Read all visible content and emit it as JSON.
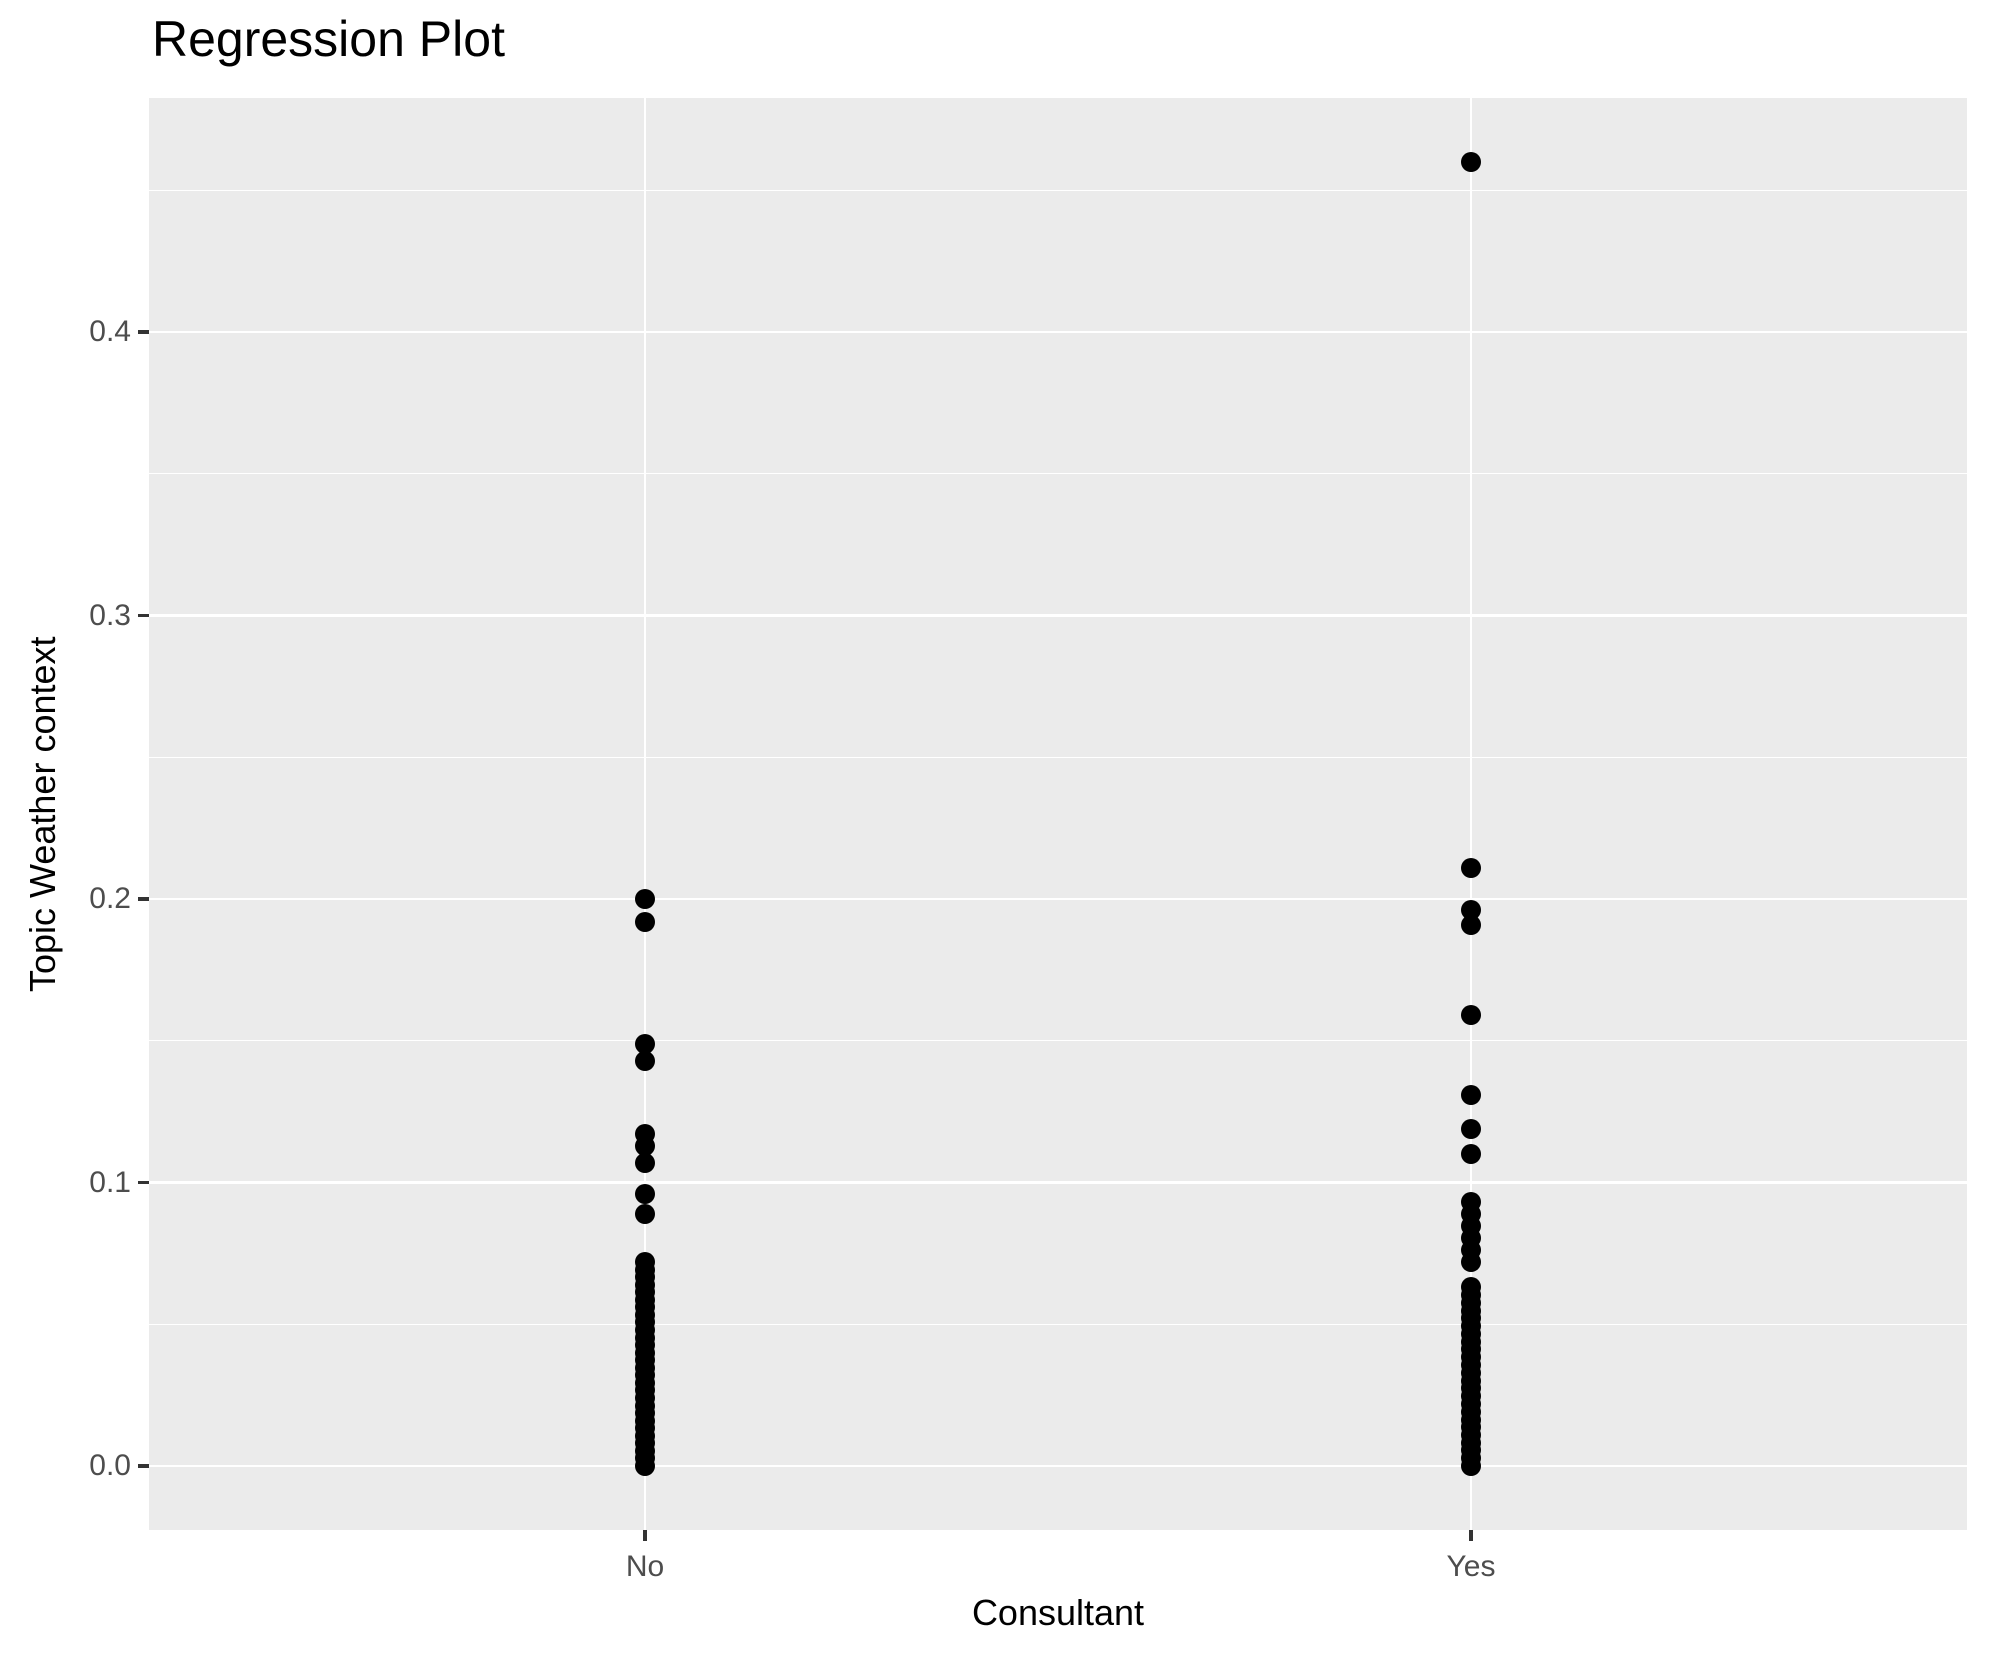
{
  "title": "Regression Plot",
  "x_axis": {
    "label": "Consultant",
    "tick_labels": [
      "No",
      "Yes"
    ]
  },
  "y_axis": {
    "label": "Topic Weather context",
    "tick_labels": [
      "0.0",
      "0.1",
      "0.2",
      "0.3",
      "0.4"
    ]
  },
  "colors": {
    "panel_background": "#EBEBEB",
    "gridline": "#FFFFFF",
    "point": "#000000",
    "tick_text": "#4D4D4D",
    "tick_mark": "#333333",
    "title_text": "#000000"
  },
  "chart_data": {
    "type": "scatter",
    "title": "Regression Plot",
    "xlabel": "Consultant",
    "ylabel": "Topic Weather context",
    "categories": [
      "No",
      "Yes"
    ],
    "ylim": [
      -0.023,
      0.483
    ],
    "y_major_ticks": [
      0.0,
      0.1,
      0.2,
      0.3,
      0.4
    ],
    "y_minor_ticks": [
      0.05,
      0.15,
      0.25,
      0.35,
      0.45
    ],
    "grid": "major-and-minor-white-on-grey",
    "legend": "none",
    "series": [
      {
        "name": "No",
        "values": [
          0.2,
          0.192,
          0.149,
          0.143,
          0.117,
          0.113,
          0.107,
          0.096,
          0.089,
          0.072,
          0.0693,
          0.0667,
          0.064,
          0.0613,
          0.0587,
          0.056,
          0.0533,
          0.0507,
          0.048,
          0.0453,
          0.0427,
          0.04,
          0.0373,
          0.0347,
          0.032,
          0.0293,
          0.0267,
          0.024,
          0.0213,
          0.0187,
          0.016,
          0.0133,
          0.0107,
          0.008,
          0.0053,
          0.0027,
          0.0
        ]
      },
      {
        "name": "Yes",
        "values": [
          0.46,
          0.211,
          0.196,
          0.191,
          0.159,
          0.131,
          0.119,
          0.11,
          0.093,
          0.0888,
          0.0846,
          0.0804,
          0.0762,
          0.072,
          0.063,
          0.0603,
          0.0575,
          0.0548,
          0.0521,
          0.0493,
          0.0466,
          0.0438,
          0.0411,
          0.0384,
          0.0356,
          0.0329,
          0.0301,
          0.0274,
          0.0247,
          0.0219,
          0.0192,
          0.0164,
          0.0137,
          0.011,
          0.0082,
          0.0055,
          0.0027,
          0.0
        ]
      }
    ]
  }
}
